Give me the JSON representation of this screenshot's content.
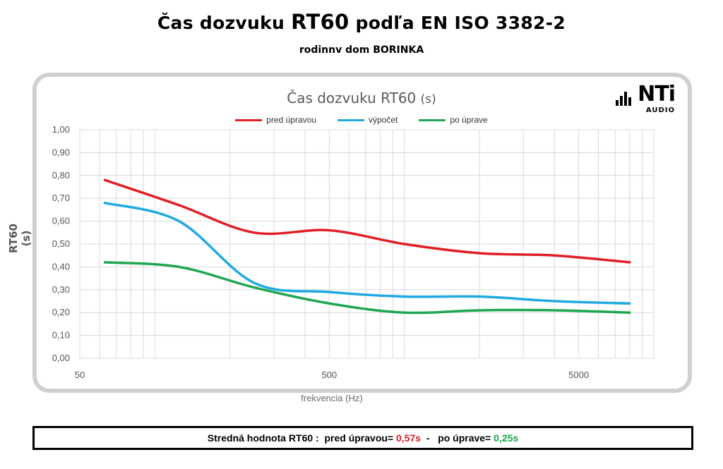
{
  "header": {
    "title_prefix": "Čas dozvuku ",
    "title_big": "RT60",
    "title_suffix": " podľa EN ISO 3382-2",
    "subtitle": "rodinnv dom BORINKA"
  },
  "logo": {
    "text": "NTi",
    "subtext": "AUDIO"
  },
  "colors": {
    "red": "#e01f26",
    "blue": "#21a9e1",
    "green": "#1fa652",
    "grid": "#d9d9d9",
    "frame": "#d0d0d0"
  },
  "chart_data": {
    "type": "line",
    "title": "Čas dozvuku RT60",
    "title_unit": "(s)",
    "xlabel": "frekvencia (Hz)",
    "ylabel": "RT60 (s)",
    "x_scale": "log",
    "xlim": [
      50,
      10000
    ],
    "ylim": [
      0,
      1
    ],
    "x_tick_labels": [
      "50",
      "500",
      "5000"
    ],
    "x_ticks": [
      50,
      500,
      5000
    ],
    "y_ticks": [
      0,
      0.1,
      0.2,
      0.3,
      0.4,
      0.5,
      0.6,
      0.7,
      0.8,
      0.9,
      1.0
    ],
    "y_tick_labels": [
      "0,00",
      "0,10",
      "0,20",
      "0,30",
      "0,40",
      "0,50",
      "0,60",
      "0,70",
      "0,80",
      "0,90",
      "1,00"
    ],
    "grid": true,
    "legend_position": "top",
    "x": [
      63,
      125,
      250,
      500,
      1000,
      2000,
      4000,
      8000
    ],
    "series": [
      {
        "name": "pred úpravou",
        "color": "#e01f26",
        "values": [
          0.78,
          0.67,
          0.55,
          0.56,
          0.5,
          0.46,
          0.45,
          0.42
        ]
      },
      {
        "name": "výpočet",
        "color": "#21a9e1",
        "values": [
          0.68,
          0.6,
          0.33,
          0.29,
          0.27,
          0.27,
          0.25,
          0.24
        ]
      },
      {
        "name": "po úprave",
        "color": "#1fa652",
        "values": [
          0.42,
          0.4,
          0.31,
          0.24,
          0.2,
          0.21,
          0.21,
          0.2
        ]
      }
    ]
  },
  "footer": {
    "label": "Stredná hodnota RT60 :  pred úpravou= ",
    "before_value": "0,57s",
    "middle": "  -   po úprave= ",
    "after_value": "0,25s"
  }
}
